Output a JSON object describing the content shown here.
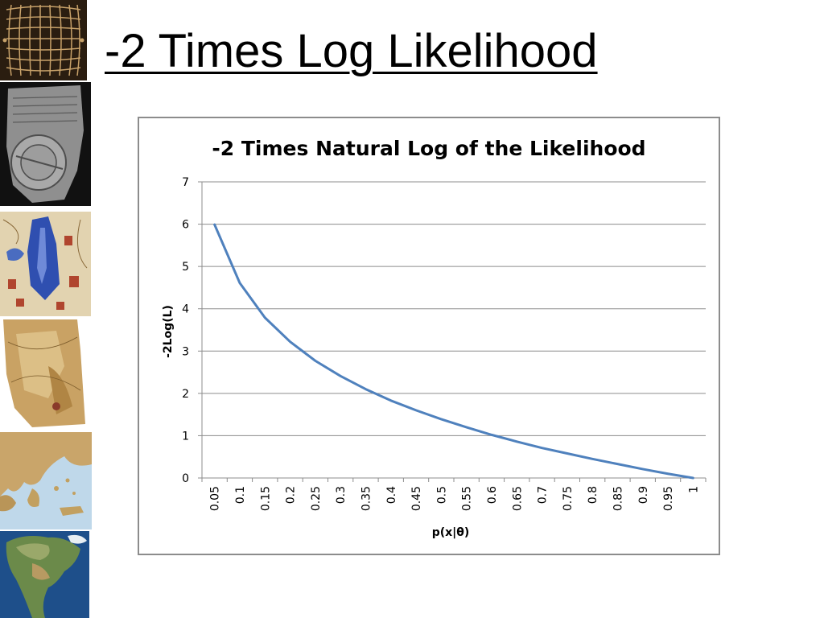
{
  "slide": {
    "title": "-2 Times Log Likelihood"
  },
  "sidebar": {
    "images": [
      {
        "name": "grid-map-image",
        "colors": [
          "#2a1d10",
          "#c8a26a"
        ]
      },
      {
        "name": "clay-tablet-map-image",
        "colors": [
          "#111111",
          "#9a9a9a"
        ]
      },
      {
        "name": "medieval-map-image",
        "colors": [
          "#2f4fb0",
          "#d9c7a0"
        ]
      },
      {
        "name": "piri-reis-map-image",
        "colors": [
          "#b8904f",
          "#e6cc95"
        ]
      },
      {
        "name": "greece-map-image",
        "colors": [
          "#bfd8ea",
          "#c9a56a"
        ]
      },
      {
        "name": "north-america-map-image",
        "colors": [
          "#1e4f8a",
          "#6b8a4a"
        ]
      }
    ]
  },
  "chart_data": {
    "type": "line",
    "title": "-2 Times Natural Log of the Likelihood",
    "xlabel": "p(x|θ)",
    "ylabel": "-2Log(L)",
    "x": [
      "0.05",
      "0.1",
      "0.15",
      "0.2",
      "0.25",
      "0.3",
      "0.35",
      "0.4",
      "0.45",
      "0.5",
      "0.55",
      "0.6",
      "0.65",
      "0.7",
      "0.75",
      "0.8",
      "0.85",
      "0.9",
      "0.95",
      "1"
    ],
    "series": [
      {
        "values": [
          5.99,
          4.61,
          3.79,
          3.22,
          2.77,
          2.41,
          2.1,
          1.83,
          1.6,
          1.39,
          1.2,
          1.02,
          0.86,
          0.71,
          0.58,
          0.45,
          0.33,
          0.21,
          0.1,
          0.0
        ]
      }
    ],
    "ylim": [
      0,
      7
    ],
    "yticks": [
      "0",
      "1",
      "2",
      "3",
      "4",
      "5",
      "6",
      "7"
    ],
    "grid": true,
    "line_color": "#4f81bd",
    "grid_color": "#8c8c8c"
  }
}
